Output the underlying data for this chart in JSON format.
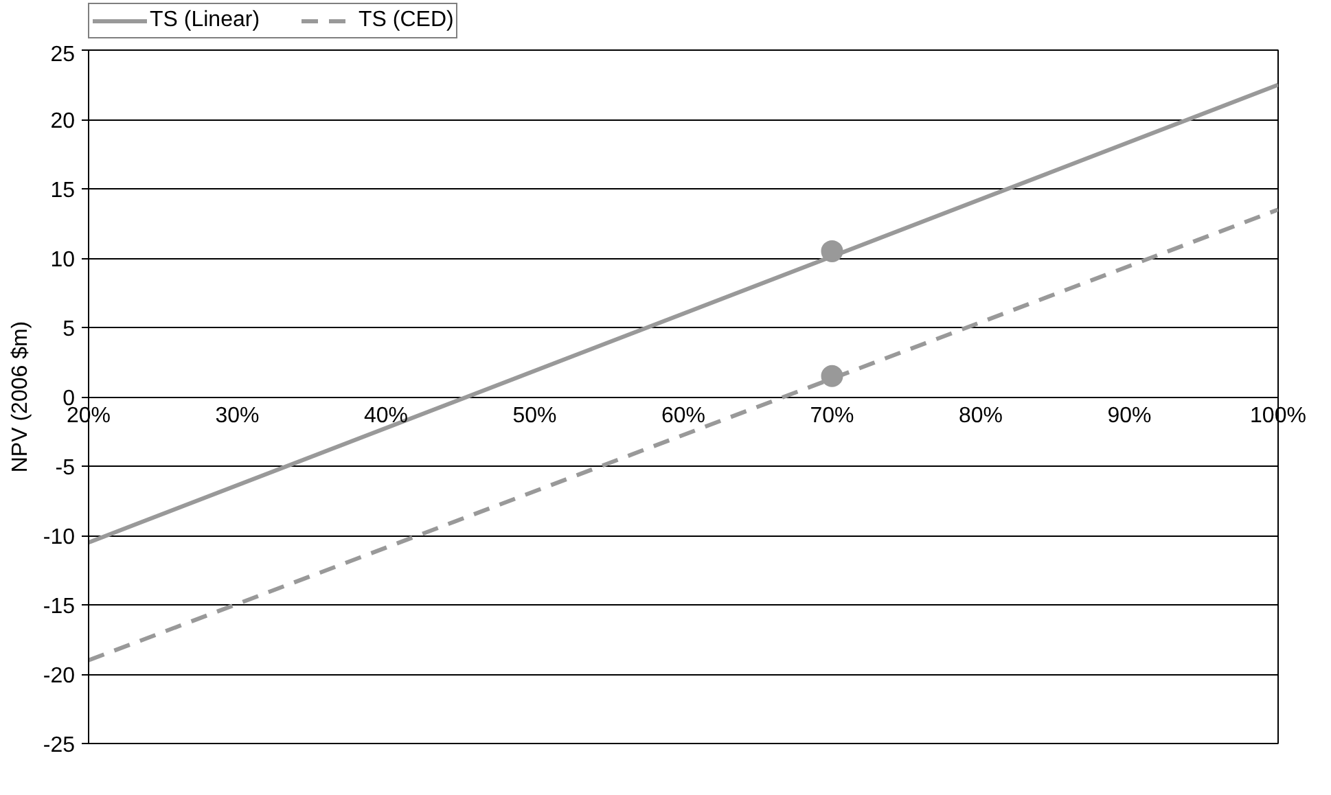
{
  "chart_data": {
    "type": "line",
    "ylabel": "NPV (2006 $m)",
    "xlim": [
      20,
      100
    ],
    "ylim": [
      -25,
      25
    ],
    "xticks": [
      {
        "value": 20,
        "label": "20%"
      },
      {
        "value": 30,
        "label": "30%"
      },
      {
        "value": 40,
        "label": "40%"
      },
      {
        "value": 50,
        "label": "50%"
      },
      {
        "value": 60,
        "label": "60%"
      },
      {
        "value": 70,
        "label": "70%"
      },
      {
        "value": 80,
        "label": "80%"
      },
      {
        "value": 90,
        "label": "90%"
      },
      {
        "value": 100,
        "label": "100%"
      }
    ],
    "yticks": [
      -25,
      -20,
      -15,
      -10,
      -5,
      0,
      5,
      10,
      15,
      20,
      25
    ],
    "grid": "y",
    "legend": "top left",
    "series": [
      {
        "name": "TS (Linear)",
        "color": "#999999",
        "x": [
          20,
          100
        ],
        "values": [
          -10.5,
          22.5
        ],
        "line_style": "solid"
      },
      {
        "name": "TS (CED)",
        "color": "#999999",
        "x": [
          20,
          100
        ],
        "values": [
          -19,
          13.5
        ],
        "line_style": "dashed"
      },
      {
        "type": "scatter",
        "color": "#999999",
        "x": [
          70,
          70
        ],
        "values": [
          10.5,
          1.5
        ],
        "marker": "circle"
      }
    ]
  }
}
